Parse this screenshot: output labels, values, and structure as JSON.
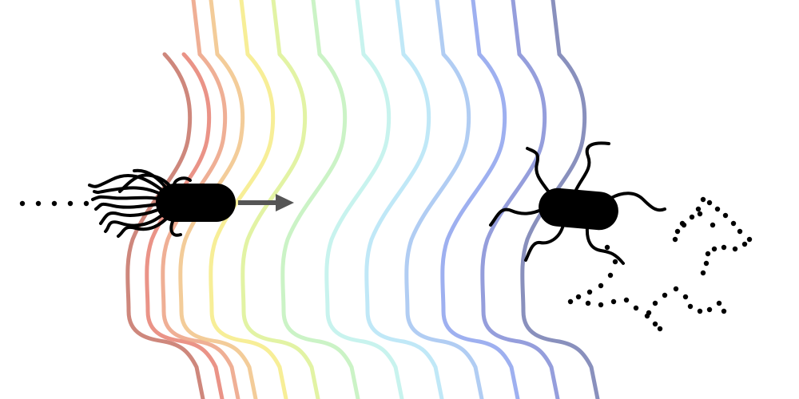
{
  "figure": {
    "description_free": true,
    "band_colors": [
      "#c97a6e",
      "#e8877a",
      "#eda68a",
      "#f2c78e",
      "#f6ec8c",
      "#dff29a",
      "#c5f2c0",
      "#c2f2ec",
      "#b9e6f6",
      "#a9c8f2",
      "#93a7ee",
      "#8a93d8",
      "#7c84b6"
    ],
    "arrow_color": "#555555",
    "cell_color": "#000000",
    "cells": [
      {
        "name": "run-cell",
        "flagella": "bundled"
      },
      {
        "name": "tumble-cell",
        "flagella": "splayed"
      }
    ]
  }
}
